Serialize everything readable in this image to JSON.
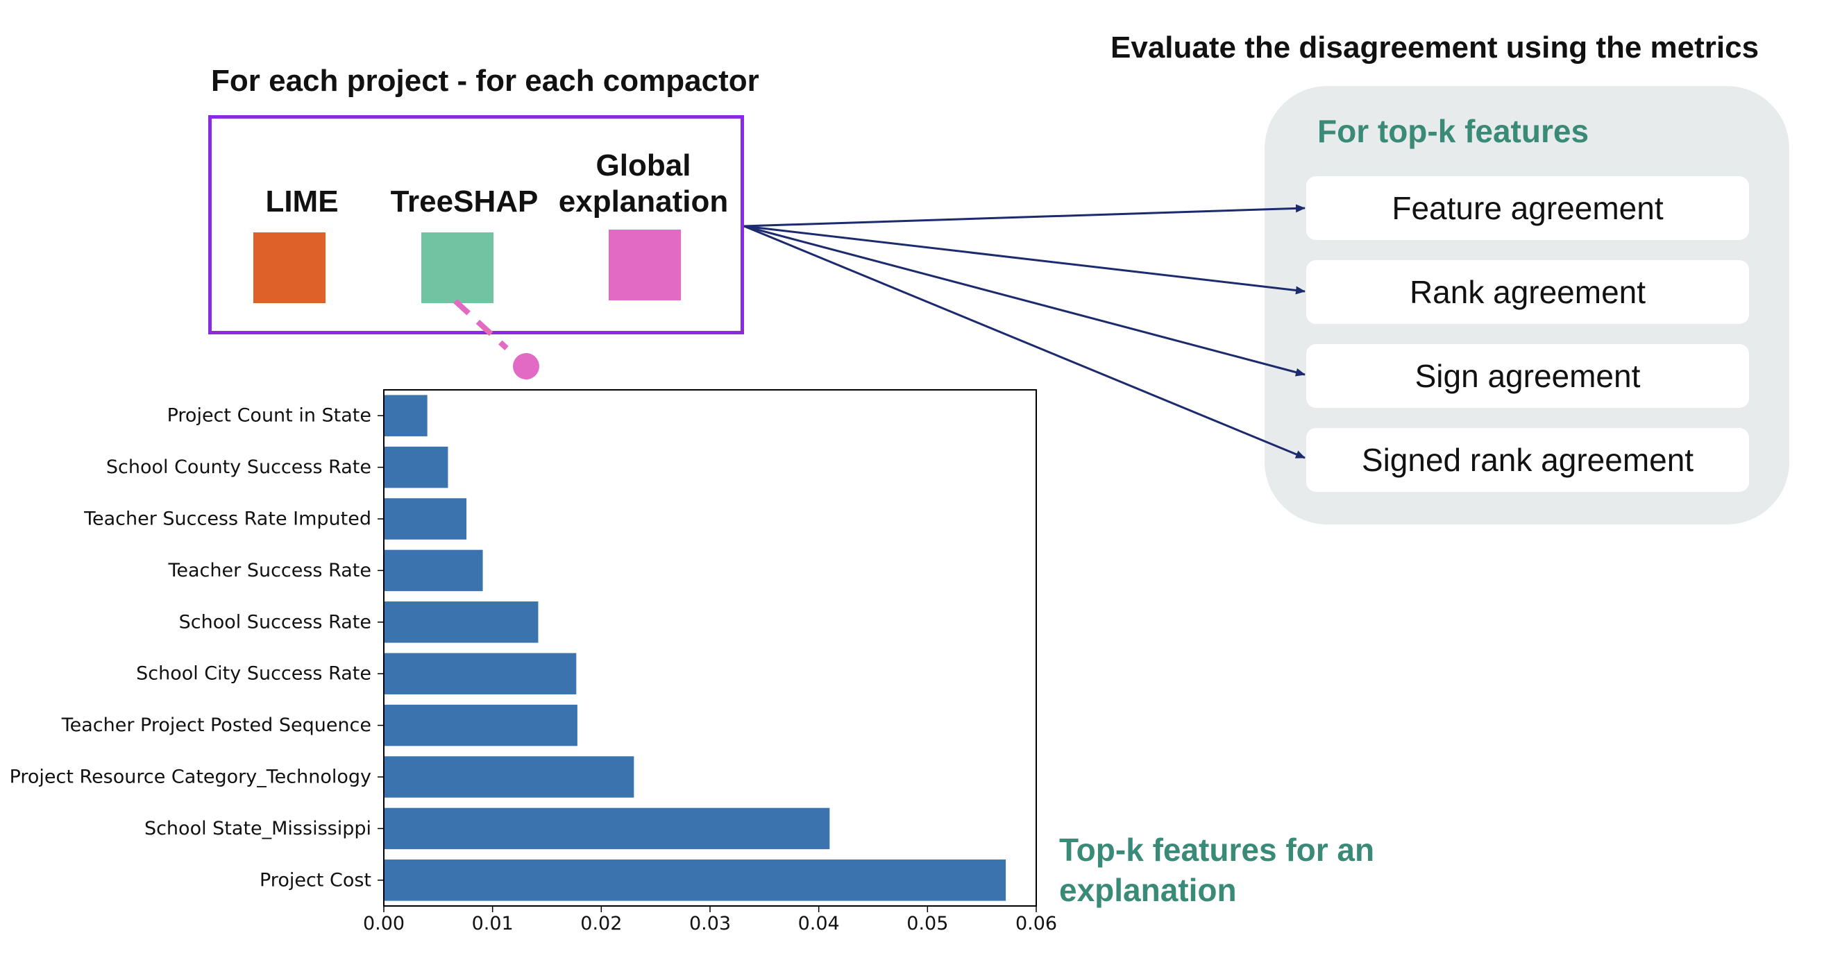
{
  "headings": {
    "left": "For each project - for each compactor",
    "right": "Evaluate the disagreement using the metrics"
  },
  "methods": [
    {
      "label": "LIME",
      "color": "#dd6128"
    },
    {
      "label": "TreeSHAP",
      "color": "#72c3a2"
    },
    {
      "label": "Global explanation",
      "color": "#e36ac4"
    }
  ],
  "connector_color": "#e36ac4",
  "arrow_color": "#1c2a6e",
  "metrics_panel": {
    "title": "For top-k features",
    "items": [
      "Feature agreement",
      "Rank agreement",
      "Sign agreement",
      "Signed rank agreement"
    ]
  },
  "topk_label": "Top-k features for an explanation",
  "chart_data": {
    "type": "bar",
    "orientation": "horizontal",
    "categories": [
      "Project Count in State",
      "School County Success Rate",
      "Teacher Success Rate Imputed",
      "Teacher Success Rate",
      "School Success Rate",
      "School City Success Rate",
      "Teacher Project Posted Sequence",
      "Project Resource Category_Technology",
      "School State_Mississippi",
      "Project Cost"
    ],
    "values": [
      0.004,
      0.0059,
      0.0076,
      0.0091,
      0.0142,
      0.0177,
      0.0178,
      0.023,
      0.041,
      0.0572
    ],
    "xlim": [
      0,
      0.06
    ],
    "xticks": [
      "0.00",
      "0.01",
      "0.02",
      "0.03",
      "0.04",
      "0.05",
      "0.06"
    ],
    "bar_color": "#3a73ae",
    "grid": false
  }
}
